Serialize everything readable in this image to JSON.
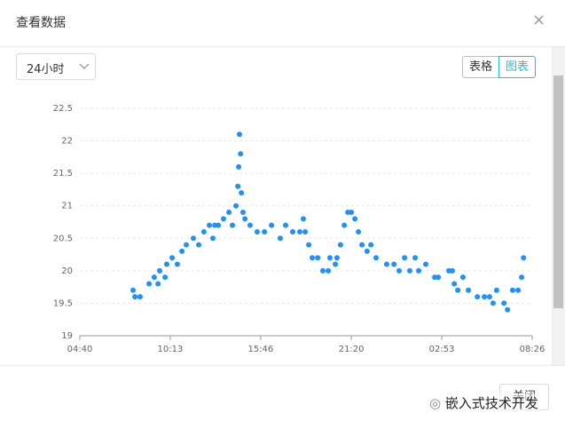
{
  "dialog": {
    "title": "查看数据",
    "range_select": "24小时",
    "tabs": [
      "表格",
      "图表"
    ],
    "close_button": "关闭",
    "watermark": "嵌入式技术开发"
  },
  "chart_data": {
    "type": "scatter",
    "color": "#1e90ff",
    "grid": true,
    "x": [
      196,
      203,
      222,
      255,
      274,
      288,
      294,
      314,
      320,
      340,
      359,
      376,
      392,
      418,
      438,
      457,
      477,
      490,
      497,
      510,
      529,
      549,
      562,
      575,
      582,
      585,
      588,
      592,
      595,
      601,
      608,
      627,
      653,
      680,
      706,
      738,
      758,
      784,
      810,
      823,
      830,
      843,
      856,
      876,
      895,
      915,
      921,
      941,
      947,
      960,
      974,
      987,
      1000,
      1013,
      1026,
      1039,
      1058,
      1072,
      1091,
      1130,
      1157,
      1176,
      1196,
      1215,
      1235,
      1248,
      1274,
      1307,
      1320,
      1359,
      1372,
      1379,
      1392,
      1411,
      1431,
      1464,
      1490,
      1509,
      1522,
      1535,
      1562,
      1575,
      1594,
      1614,
      1627,
      1634
    ],
    "values": [
      19.7,
      19.6,
      19.6,
      19.8,
      19.9,
      19.8,
      20.0,
      19.9,
      20.1,
      20.2,
      20.1,
      20.3,
      20.4,
      20.5,
      20.4,
      20.6,
      20.7,
      20.5,
      20.7,
      20.7,
      20.8,
      20.9,
      20.7,
      21.0,
      21.3,
      21.6,
      22.1,
      21.8,
      21.2,
      20.9,
      20.8,
      20.7,
      20.6,
      20.6,
      20.7,
      20.5,
      20.7,
      20.6,
      20.6,
      20.8,
      20.6,
      20.4,
      20.2,
      20.2,
      20.0,
      20.0,
      20.2,
      20.1,
      20.2,
      20.4,
      20.7,
      20.9,
      20.9,
      20.8,
      20.6,
      20.4,
      20.3,
      20.4,
      20.2,
      20.1,
      20.1,
      20.0,
      20.2,
      20.0,
      20.2,
      20.0,
      20.1,
      19.9,
      19.9,
      20.0,
      20.0,
      19.8,
      19.7,
      19.9,
      19.7,
      19.6,
      19.6,
      19.6,
      19.5,
      19.7,
      19.5,
      19.4,
      19.7,
      19.7,
      19.9,
      20.2
    ],
    "xlim": [
      0,
      1666
    ],
    "xticks": [
      {
        "value": 0,
        "label": "04:40"
      },
      {
        "value": 333,
        "label": "10:13"
      },
      {
        "value": 666,
        "label": "15:46"
      },
      {
        "value": 1000,
        "label": "21:20"
      },
      {
        "value": 1333,
        "label": "02:53"
      },
      {
        "value": 1666,
        "label": "08:26"
      }
    ],
    "ylim": [
      19,
      22.5
    ],
    "yticks": [
      19,
      19.5,
      20,
      20.5,
      21,
      21.5,
      22,
      22.5
    ]
  }
}
